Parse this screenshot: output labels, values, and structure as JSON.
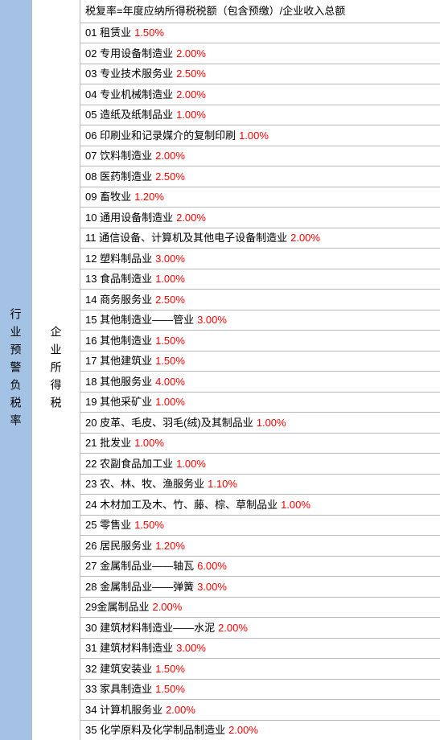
{
  "leftColumn": "行业预警负税率",
  "midColumn": "企业所得税",
  "formula": "税复率=年度应纳所得税税额（包含预缴）/企业收入总额",
  "rows": [
    {
      "num": "01",
      "industry": "租赁业",
      "rate": "1.50%"
    },
    {
      "num": "02",
      "industry": "专用设备制造业",
      "rate": "2.00%"
    },
    {
      "num": "03",
      "industry": "专业技术服务业",
      "rate": "2.50%"
    },
    {
      "num": "04",
      "industry": "专业机械制造业",
      "rate": "2.00%"
    },
    {
      "num": "05",
      "industry": "造纸及纸制品业",
      "rate": "1.00%"
    },
    {
      "num": "06",
      "industry": "印刷业和记录媒介的复制印刷",
      "rate": "1.00%"
    },
    {
      "num": "07",
      "industry": "饮料制造业",
      "rate": "2.00%"
    },
    {
      "num": "08",
      "industry": "医药制造业",
      "rate": "2.50%"
    },
    {
      "num": "09",
      "industry": "畜牧业",
      "rate": "1.20%"
    },
    {
      "num": "10",
      "industry": "通用设备制造业",
      "rate": "2.00%"
    },
    {
      "num": "11",
      "industry": "通信设备、计算机及其他电子设备制造业",
      "rate": "2.00%"
    },
    {
      "num": "12",
      "industry": "塑料制品业",
      "rate": "3.00%"
    },
    {
      "num": "13",
      "industry": "食品制造业",
      "rate": "1.00%"
    },
    {
      "num": "14",
      "industry": "商务服务业",
      "rate": "2.50%"
    },
    {
      "num": "15",
      "industry": "其他制造业——管业",
      "rate": "3.00%"
    },
    {
      "num": "16",
      "industry": "其他制造业",
      "rate": "1.50%"
    },
    {
      "num": "17",
      "industry": "其他建筑业",
      "rate": "1.50%"
    },
    {
      "num": "18",
      "industry": "其他服务业",
      "rate": "4.00%"
    },
    {
      "num": "19",
      "industry": "其他采矿业",
      "rate": "1.00%"
    },
    {
      "num": "20",
      "industry": "皮革、毛皮、羽毛(绒)及其制品业",
      "rate": "1.00%"
    },
    {
      "num": "21",
      "industry": "批发业",
      "rate": "1.00%"
    },
    {
      "num": "22",
      "industry": "农副食品加工业",
      "rate": "1.00%"
    },
    {
      "num": "23",
      "industry": "农、林、牧、渔服务业",
      "rate": "1.10%"
    },
    {
      "num": "24",
      "industry": "木材加工及木、竹、藤、棕、草制品业",
      "rate": "1.00%"
    },
    {
      "num": "25",
      "industry": "零售业",
      "rate": "1.50%"
    },
    {
      "num": "26",
      "industry": "居民服务业",
      "rate": "1.20%"
    },
    {
      "num": "27",
      "industry": "金属制品业——轴瓦",
      "rate": "6.00%"
    },
    {
      "num": "28",
      "industry": "金属制品业——弹簧",
      "rate": "3.00%"
    },
    {
      "num": "29",
      "industry": "金属制品业",
      "rate": "2.00%",
      "nospace": true
    },
    {
      "num": "30",
      "industry": "建筑材料制造业——水泥",
      "rate": "2.00%"
    },
    {
      "num": "31",
      "industry": "建筑材料制造业",
      "rate": "3.00%"
    },
    {
      "num": "32",
      "industry": "建筑安装业",
      "rate": "1.50%"
    },
    {
      "num": "33",
      "industry": "家具制造业",
      "rate": "1.50%"
    },
    {
      "num": "34",
      "industry": "计算机服务业",
      "rate": "2.00%"
    },
    {
      "num": "35",
      "industry": "化学原料及化学制品制造业",
      "rate": "2.00%"
    }
  ],
  "colors": {
    "leftBg": "#a3c2e4",
    "rateColor": "#ff0000",
    "textColor": "#000000",
    "borderColor": "#b8b8b8"
  }
}
